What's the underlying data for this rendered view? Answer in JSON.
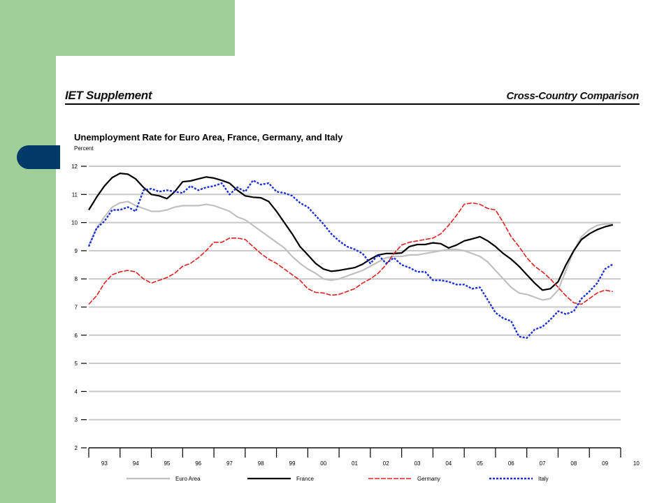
{
  "theme": {
    "slide_green": "#9fcf97",
    "tab_blue": "#003a69",
    "grid_color": "#c8c8c8",
    "series_colors": [
      "#c0c0c0",
      "#000000",
      "#e02020",
      "#1c2fd6"
    ]
  },
  "header": {
    "left": "IET Supplement",
    "right": "Cross-Country Comparison"
  },
  "chart_data": {
    "type": "line",
    "title": "Unemployment Rate for Euro Area, France, Germany, and Italy",
    "ylabel": "Percent",
    "xlabel": "",
    "ylim": [
      2,
      12
    ],
    "yticks": [
      "2",
      "3",
      "4",
      "5",
      "6",
      "7",
      "8",
      "9",
      "10",
      "11",
      "12"
    ],
    "xlim": [
      1993.0,
      2010.0
    ],
    "xticks": [
      "93",
      "94",
      "95",
      "96",
      "97",
      "98",
      "99",
      "00",
      "01",
      "02",
      "03",
      "04",
      "05",
      "06",
      "07",
      "08",
      "09",
      "10"
    ],
    "grid": true,
    "legend_position": "bottom",
    "series": [
      {
        "name": "Euro Area",
        "style": "solid",
        "x": [
          1993.0,
          1993.25,
          1993.5,
          1993.75,
          1994.0,
          1994.25,
          1994.5,
          1994.75,
          1995.0,
          1995.25,
          1995.5,
          1995.75,
          1996.0,
          1996.25,
          1996.5,
          1996.75,
          1997.0,
          1997.25,
          1997.5,
          1997.75,
          1998.0,
          1998.25,
          1998.5,
          1998.75,
          1999.0,
          1999.25,
          1999.5,
          1999.75,
          2000.0,
          2000.25,
          2000.5,
          2000.75,
          2001.0,
          2001.25,
          2001.5,
          2001.75,
          2002.0,
          2002.25,
          2002.5,
          2002.75,
          2003.0,
          2003.25,
          2003.5,
          2003.75,
          2004.0,
          2004.25,
          2004.5,
          2004.75,
          2005.0,
          2005.25,
          2005.5,
          2005.75,
          2006.0,
          2006.25,
          2006.5,
          2006.75,
          2007.0,
          2007.25,
          2007.5,
          2007.75,
          2008.0,
          2008.25,
          2008.5,
          2008.75,
          2009.0,
          2009.25,
          2009.5,
          2009.75
        ],
        "values": [
          9.2,
          9.8,
          10.2,
          10.55,
          10.7,
          10.75,
          10.6,
          10.5,
          10.4,
          10.4,
          10.45,
          10.55,
          10.6,
          10.6,
          10.6,
          10.65,
          10.6,
          10.5,
          10.4,
          10.2,
          10.1,
          9.9,
          9.7,
          9.5,
          9.3,
          9.1,
          8.8,
          8.55,
          8.35,
          8.2,
          8.0,
          7.95,
          8.0,
          8.1,
          8.2,
          8.3,
          8.45,
          8.6,
          8.75,
          8.8,
          8.8,
          8.85,
          8.85,
          8.9,
          8.95,
          9.0,
          9.05,
          9.05,
          9.0,
          8.9,
          8.8,
          8.6,
          8.3,
          8.0,
          7.7,
          7.5,
          7.45,
          7.35,
          7.25,
          7.3,
          7.6,
          8.3,
          9.0,
          9.5,
          9.75,
          9.9,
          9.95,
          9.95
        ]
      },
      {
        "name": "France",
        "style": "solid",
        "x": [
          1993.0,
          1993.25,
          1993.5,
          1993.75,
          1994.0,
          1994.25,
          1994.5,
          1994.75,
          1995.0,
          1995.25,
          1995.5,
          1995.75,
          1996.0,
          1996.25,
          1996.5,
          1996.75,
          1997.0,
          1997.25,
          1997.5,
          1997.75,
          1998.0,
          1998.25,
          1998.5,
          1998.75,
          1999.0,
          1999.25,
          1999.5,
          1999.75,
          2000.0,
          2000.25,
          2000.5,
          2000.75,
          2001.0,
          2001.25,
          2001.5,
          2001.75,
          2002.0,
          2002.25,
          2002.5,
          2002.75,
          2003.0,
          2003.25,
          2003.5,
          2003.75,
          2004.0,
          2004.25,
          2004.5,
          2004.75,
          2005.0,
          2005.25,
          2005.5,
          2005.75,
          2006.0,
          2006.25,
          2006.5,
          2006.75,
          2007.0,
          2007.25,
          2007.5,
          2007.75,
          2008.0,
          2008.25,
          2008.5,
          2008.75,
          2009.0,
          2009.25,
          2009.5,
          2009.75
        ],
        "values": [
          10.45,
          10.9,
          11.3,
          11.6,
          11.75,
          11.72,
          11.55,
          11.25,
          11.0,
          10.95,
          10.85,
          11.1,
          11.45,
          11.48,
          11.55,
          11.62,
          11.58,
          11.5,
          11.4,
          11.15,
          10.95,
          10.9,
          10.88,
          10.75,
          10.4,
          10.0,
          9.6,
          9.15,
          8.85,
          8.55,
          8.35,
          8.27,
          8.3,
          8.35,
          8.4,
          8.52,
          8.7,
          8.85,
          8.9,
          8.9,
          8.92,
          9.15,
          9.22,
          9.22,
          9.28,
          9.25,
          9.1,
          9.2,
          9.35,
          9.42,
          9.5,
          9.35,
          9.15,
          8.9,
          8.7,
          8.45,
          8.15,
          7.85,
          7.6,
          7.65,
          7.9,
          8.5,
          9.0,
          9.4,
          9.6,
          9.75,
          9.85,
          9.92
        ]
      },
      {
        "name": "Germany",
        "style": "dashed",
        "x": [
          1993.0,
          1993.25,
          1993.5,
          1993.75,
          1994.0,
          1994.25,
          1994.5,
          1994.75,
          1995.0,
          1995.25,
          1995.5,
          1995.75,
          1996.0,
          1996.25,
          1996.5,
          1996.75,
          1997.0,
          1997.25,
          1997.5,
          1997.75,
          1998.0,
          1998.25,
          1998.5,
          1998.75,
          1999.0,
          1999.25,
          1999.5,
          1999.75,
          2000.0,
          2000.25,
          2000.5,
          2000.75,
          2001.0,
          2001.25,
          2001.5,
          2001.75,
          2002.0,
          2002.25,
          2002.5,
          2002.75,
          2003.0,
          2003.25,
          2003.5,
          2003.75,
          2004.0,
          2004.25,
          2004.5,
          2004.75,
          2005.0,
          2005.25,
          2005.5,
          2005.75,
          2006.0,
          2006.25,
          2006.5,
          2006.75,
          2007.0,
          2007.25,
          2007.5,
          2007.75,
          2008.0,
          2008.25,
          2008.5,
          2008.75,
          2009.0,
          2009.25,
          2009.5,
          2009.75
        ],
        "values": [
          7.1,
          7.4,
          7.85,
          8.15,
          8.25,
          8.3,
          8.25,
          8.0,
          7.85,
          7.95,
          8.05,
          8.2,
          8.45,
          8.55,
          8.75,
          9.0,
          9.3,
          9.3,
          9.45,
          9.45,
          9.4,
          9.15,
          8.9,
          8.7,
          8.55,
          8.35,
          8.15,
          7.95,
          7.65,
          7.52,
          7.5,
          7.42,
          7.45,
          7.55,
          7.65,
          7.85,
          8.0,
          8.2,
          8.5,
          8.9,
          9.2,
          9.3,
          9.35,
          9.4,
          9.45,
          9.6,
          9.9,
          10.25,
          10.65,
          10.7,
          10.65,
          10.5,
          10.45,
          10.0,
          9.5,
          9.15,
          8.75,
          8.45,
          8.25,
          8.0,
          7.7,
          7.4,
          7.15,
          7.1,
          7.3,
          7.5,
          7.6,
          7.55
        ]
      },
      {
        "name": "Italy",
        "style": "dotted",
        "x": [
          1993.0,
          1993.25,
          1993.5,
          1993.75,
          1994.0,
          1994.25,
          1994.5,
          1994.75,
          1995.0,
          1995.25,
          1995.5,
          1995.75,
          1996.0,
          1996.25,
          1996.5,
          1996.75,
          1997.0,
          1997.25,
          1997.5,
          1997.75,
          1998.0,
          1998.25,
          1998.5,
          1998.75,
          1999.0,
          1999.25,
          1999.5,
          1999.75,
          2000.0,
          2000.25,
          2000.5,
          2000.75,
          2001.0,
          2001.25,
          2001.5,
          2001.75,
          2002.0,
          2002.25,
          2002.5,
          2002.75,
          2003.0,
          2003.25,
          2003.5,
          2003.75,
          2004.0,
          2004.25,
          2004.5,
          2004.75,
          2005.0,
          2005.25,
          2005.5,
          2005.75,
          2006.0,
          2006.25,
          2006.5,
          2006.75,
          2007.0,
          2007.25,
          2007.5,
          2007.75,
          2008.0,
          2008.25,
          2008.5,
          2008.75,
          2009.0,
          2009.25,
          2009.5,
          2009.75
        ],
        "values": [
          9.15,
          9.8,
          10.05,
          10.45,
          10.45,
          10.55,
          10.4,
          11.15,
          11.2,
          11.1,
          11.15,
          11.1,
          11.05,
          11.3,
          11.15,
          11.25,
          11.3,
          11.4,
          11.0,
          11.25,
          11.1,
          11.5,
          11.35,
          11.4,
          11.1,
          11.05,
          10.95,
          10.7,
          10.55,
          10.25,
          9.95,
          9.6,
          9.35,
          9.15,
          9.05,
          8.9,
          8.55,
          8.85,
          8.55,
          8.75,
          8.5,
          8.4,
          8.25,
          8.25,
          7.95,
          7.95,
          7.9,
          7.8,
          7.8,
          7.65,
          7.7,
          7.25,
          6.8,
          6.6,
          6.5,
          5.95,
          5.9,
          6.2,
          6.3,
          6.55,
          6.85,
          6.75,
          6.85,
          7.3,
          7.55,
          7.85,
          8.35,
          8.52
        ]
      }
    ]
  }
}
